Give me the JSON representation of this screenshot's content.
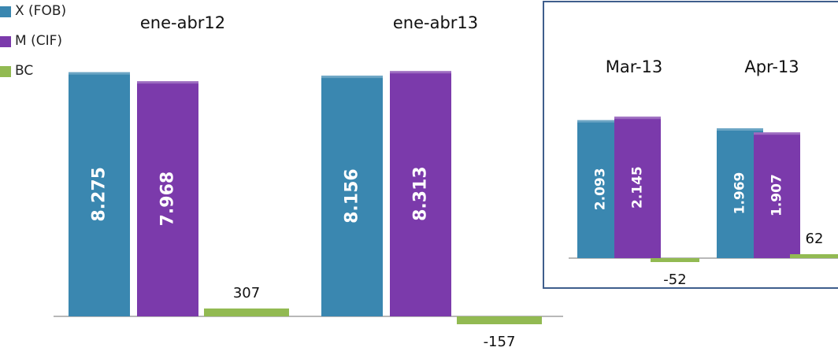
{
  "colors": {
    "x_fob": "#3A87B0",
    "m_cif": "#7B3AAB",
    "bc": "#92BA52",
    "inset_border": "#3F5E8C",
    "axis": "#A0A0A0"
  },
  "legend": [
    {
      "label": "X (FOB)",
      "color_key": "x_fob"
    },
    {
      "label": "M (CIF)",
      "color_key": "m_cif"
    },
    {
      "label": "BC",
      "color_key": "bc"
    }
  ],
  "chart_data": [
    {
      "type": "bar",
      "categories": [
        "ene-abr12",
        "ene-abr13"
      ],
      "series": [
        {
          "name": "X (FOB)",
          "values": [
            8275,
            8156
          ],
          "labels": [
            "8.275",
            "8.156"
          ]
        },
        {
          "name": "M (CIF)",
          "values": [
            7968,
            8313
          ],
          "labels": [
            "7.968",
            "8.313"
          ]
        },
        {
          "name": "BC",
          "values": [
            307,
            -157
          ],
          "labels": [
            "307",
            "-157"
          ]
        }
      ],
      "legend": "top-left",
      "grid": false
    },
    {
      "type": "bar",
      "categories": [
        "Mar-13",
        "Apr-13"
      ],
      "series": [
        {
          "name": "X (FOB)",
          "values": [
            2093,
            1969
          ],
          "labels": [
            "2.093",
            "1.969"
          ]
        },
        {
          "name": "M (CIF)",
          "values": [
            2145,
            1907
          ],
          "labels": [
            "2.145",
            "1.907"
          ]
        },
        {
          "name": "BC",
          "values": [
            -52,
            62
          ],
          "labels": [
            "-52",
            "62"
          ]
        }
      ],
      "grid": false
    }
  ]
}
